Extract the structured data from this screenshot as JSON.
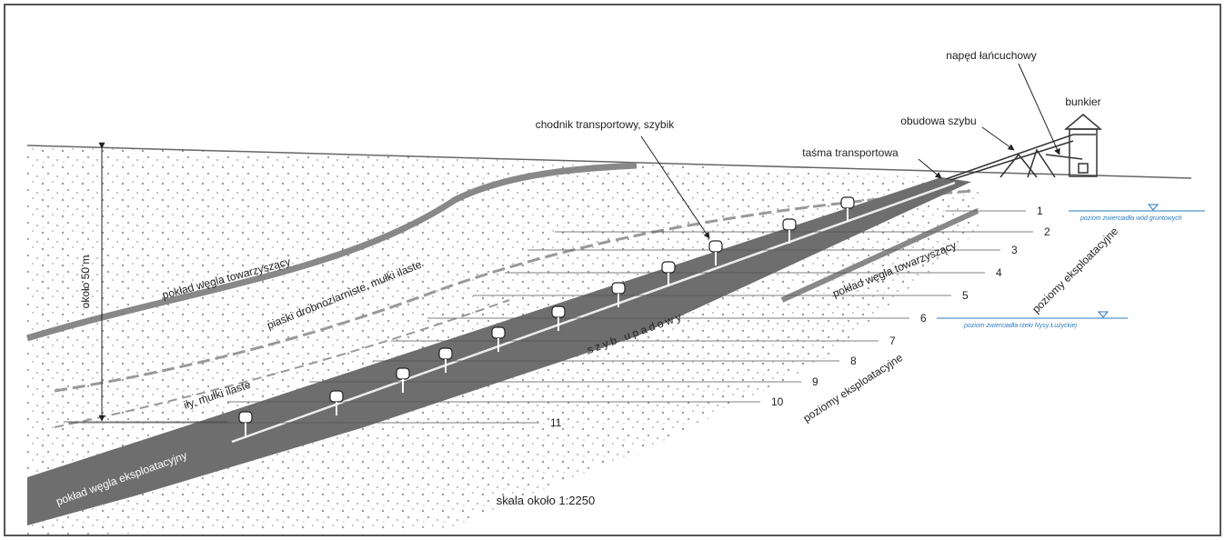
{
  "labels": {
    "chain_drive": "napęd łańcuchowy",
    "shaft_lining": "obudowa szybu",
    "bunker": "bunkier",
    "gallery": "chodnik transportowy, szybik",
    "belt": "taśma transportowa",
    "depth": "około 50 m",
    "seam_upper": "pokład węgla towarzyszący",
    "sands": "piaski drobnoziarniste, mułki ilaste",
    "clays": "iły, mułki ilaste",
    "shaft": "szyb upadowy",
    "seam_right": "pokład węgla towarzyszący",
    "levels_upper": "poziomy eksploatacyjne",
    "levels_lower": "poziomy eksploatacyjne",
    "groundwater": "poziom zwierciadła wód gruntowych",
    "river": "poziom zwierciadła rzeki Nysy Łużyckiej",
    "seam_main": "pokład węgla eksploatacyjny",
    "scale": "skala około 1:2250"
  },
  "levels": [
    1,
    2,
    3,
    4,
    5,
    6,
    7,
    8,
    9,
    10,
    11
  ]
}
